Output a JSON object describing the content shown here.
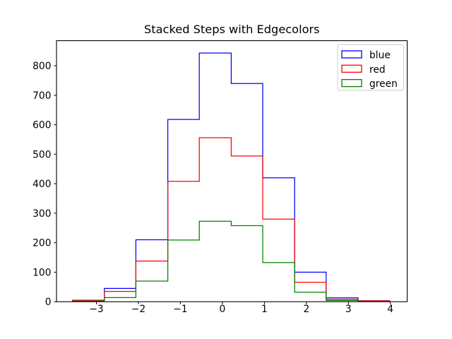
{
  "chart_data": {
    "type": "histogram-step",
    "histtype": "step",
    "title": "Stacked Steps with Edgecolors",
    "xlabel": "",
    "ylabel": "",
    "grid": false,
    "bin_edges": [
      -3.57,
      -2.81,
      -2.06,
      -1.3,
      -0.55,
      0.21,
      0.96,
      1.72,
      2.47,
      3.23,
      3.98
    ],
    "series": [
      {
        "name": "blue",
        "color": "#0000ff",
        "values": [
          5,
          45,
          210,
          618,
          843,
          740,
          420,
          100,
          13,
          3
        ]
      },
      {
        "name": "red",
        "color": "#ff0000",
        "values": [
          4,
          35,
          138,
          408,
          556,
          494,
          280,
          66,
          8,
          3
        ]
      },
      {
        "name": "green",
        "color": "#008000",
        "values": [
          2,
          14,
          70,
          209,
          273,
          258,
          133,
          32,
          4,
          1
        ]
      }
    ],
    "xticks": [
      -3,
      -2,
      -1,
      0,
      1,
      2,
      3,
      4
    ],
    "yticks": [
      0,
      100,
      200,
      300,
      400,
      500,
      600,
      700,
      800
    ],
    "xlim": [
      -3.95,
      4.4
    ],
    "ylim": [
      0,
      885
    ],
    "legend": {
      "position": "upper-right",
      "entries": [
        {
          "label": "blue",
          "color": "#0000ff"
        },
        {
          "label": "red",
          "color": "#ff0000"
        },
        {
          "label": "green",
          "color": "#008000"
        }
      ]
    }
  },
  "colors": {
    "background": "#ffffff",
    "axis": "#000000",
    "tick_label": "#000000",
    "legend_border": "#cccccc",
    "legend_background": "#ffffff"
  }
}
